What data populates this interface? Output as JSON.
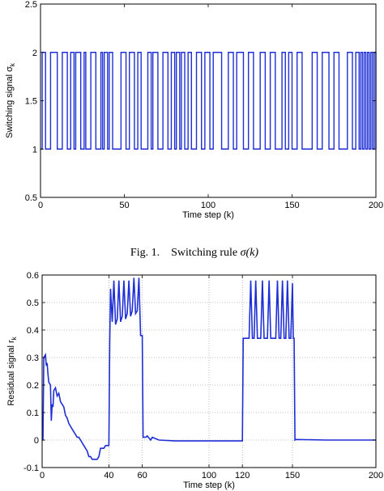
{
  "caption1": {
    "prefix": "Fig. 1.",
    "text": "Switching rule ",
    "math": "σ(k)"
  },
  "chart_data": [
    {
      "type": "line",
      "step": true,
      "xlabel": "Time step (k)",
      "ylabel": "Switching signal σ",
      "ylabel_subscript": "k",
      "xlim": [
        0,
        200
      ],
      "ylim": [
        0.5,
        2.5
      ],
      "xticks": [
        0,
        50,
        100,
        150,
        200
      ],
      "xtick_labels": [
        "0",
        "50",
        "100",
        "150",
        "200"
      ],
      "yticks": [
        0.5,
        1,
        1.5,
        2,
        2.5
      ],
      "ytick_labels": [
        "0.5",
        "1",
        "1.5",
        "2",
        "2.5"
      ],
      "grid": false,
      "line_color": "#1f2fd6",
      "switch_times": [
        1,
        3,
        6,
        10,
        13,
        16,
        18,
        20,
        21,
        24,
        26,
        27,
        30,
        33,
        36,
        37,
        38,
        40,
        41,
        43,
        48,
        51,
        53,
        56,
        58,
        60,
        64,
        66,
        67,
        70,
        73,
        76,
        78,
        80,
        81,
        83,
        84,
        86,
        88,
        90,
        93,
        96,
        98,
        101,
        103,
        108,
        112,
        115,
        117,
        121,
        124,
        127,
        131,
        134,
        137,
        140,
        144,
        146,
        148,
        150,
        153,
        156,
        162,
        165,
        168,
        172,
        175,
        178,
        183,
        186,
        188,
        190,
        191,
        192,
        193,
        194,
        195,
        196,
        197,
        198,
        199,
        200
      ],
      "initial_value": 1,
      "values": [
        1,
        2
      ]
    },
    {
      "type": "line",
      "xlabel": "Time step (k)",
      "ylabel": "Residual signal r",
      "ylabel_subscript": "k",
      "xlim": [
        0,
        200
      ],
      "ylim": [
        -0.1,
        0.6
      ],
      "xticks": [
        0,
        40,
        60,
        100,
        120,
        150,
        200
      ],
      "xtick_labels": [
        "0",
        "40",
        "60",
        "100",
        "120",
        "150",
        "200"
      ],
      "yticks": [
        -0.1,
        0,
        0.1,
        0.2,
        0.3,
        0.4,
        0.5,
        0.6
      ],
      "ytick_labels": [
        "-0.1",
        "0",
        "0.1",
        "0.2",
        "0.3",
        "0.4",
        "0.5",
        "0.6"
      ],
      "grid": true,
      "line_color": "#1f2fd6",
      "points": [
        [
          0,
          0
        ],
        [
          0.5,
          0
        ],
        [
          1,
          0.3
        ],
        [
          2,
          0.31
        ],
        [
          2.5,
          0.27
        ],
        [
          3,
          0.28
        ],
        [
          3.5,
          0.24
        ],
        [
          4,
          0.21
        ],
        [
          5,
          0.2
        ],
        [
          5.5,
          0.07
        ],
        [
          6,
          0.13
        ],
        [
          6.5,
          0.12
        ],
        [
          7,
          0.18
        ],
        [
          8,
          0.19
        ],
        [
          9,
          0.16
        ],
        [
          10,
          0.17
        ],
        [
          11,
          0.14
        ],
        [
          12,
          0.13
        ],
        [
          13,
          0.12
        ],
        [
          14,
          0.09
        ],
        [
          15,
          0.08
        ],
        [
          16,
          0.06
        ],
        [
          17,
          0.05
        ],
        [
          18,
          0.04
        ],
        [
          19,
          0.03
        ],
        [
          20,
          0.02
        ],
        [
          21,
          0.01
        ],
        [
          22,
          0.01
        ],
        [
          23,
          0.0
        ],
        [
          24,
          -0.01
        ],
        [
          25,
          -0.02
        ],
        [
          26,
          -0.03
        ],
        [
          27,
          -0.04
        ],
        [
          28,
          -0.06
        ],
        [
          29,
          -0.06
        ],
        [
          30,
          -0.07
        ],
        [
          33,
          -0.07
        ],
        [
          34,
          -0.06
        ],
        [
          35,
          -0.03
        ],
        [
          37,
          -0.03
        ],
        [
          38,
          -0.02
        ],
        [
          39,
          -0.02
        ],
        [
          40,
          -0.02
        ],
        [
          40.5,
          0.35
        ],
        [
          41,
          0.55
        ],
        [
          42,
          0.43
        ],
        [
          43,
          0.58
        ],
        [
          44,
          0.42
        ],
        [
          45,
          0.44
        ],
        [
          46,
          0.58
        ],
        [
          47,
          0.43
        ],
        [
          48,
          0.45
        ],
        [
          49,
          0.58
        ],
        [
          50,
          0.44
        ],
        [
          51,
          0.46
        ],
        [
          52,
          0.58
        ],
        [
          53,
          0.45
        ],
        [
          54,
          0.47
        ],
        [
          55,
          0.59
        ],
        [
          56,
          0.46
        ],
        [
          57,
          0.47
        ],
        [
          58,
          0.59
        ],
        [
          59,
          0.38
        ],
        [
          60,
          0.38
        ],
        [
          60.5,
          0.01
        ],
        [
          62,
          0.01
        ],
        [
          63,
          0.015
        ],
        [
          65,
          0.0
        ],
        [
          66,
          0.01
        ],
        [
          70,
          0.0
        ],
        [
          80,
          -0.003
        ],
        [
          90,
          -0.003
        ],
        [
          100,
          -0.003
        ],
        [
          110,
          -0.003
        ],
        [
          120,
          -0.003
        ],
        [
          120.5,
          0.37
        ],
        [
          124,
          0.37
        ],
        [
          125,
          0.58
        ],
        [
          126,
          0.37
        ],
        [
          127,
          0.37
        ],
        [
          128,
          0.58
        ],
        [
          129,
          0.37
        ],
        [
          131,
          0.37
        ],
        [
          132,
          0.58
        ],
        [
          133,
          0.37
        ],
        [
          135,
          0.37
        ],
        [
          136,
          0.58
        ],
        [
          137,
          0.37
        ],
        [
          140,
          0.37
        ],
        [
          141,
          0.58
        ],
        [
          142,
          0.37
        ],
        [
          143,
          0.37
        ],
        [
          144,
          0.58
        ],
        [
          145,
          0.37
        ],
        [
          146,
          0.37
        ],
        [
          147,
          0.58
        ],
        [
          148,
          0.37
        ],
        [
          149,
          0.37
        ],
        [
          150,
          0.57
        ],
        [
          150.5,
          0.37
        ],
        [
          151,
          0.37
        ],
        [
          151.5,
          0.0
        ],
        [
          152,
          0.002
        ],
        [
          170,
          0.0
        ],
        [
          200,
          0.0
        ]
      ]
    }
  ]
}
